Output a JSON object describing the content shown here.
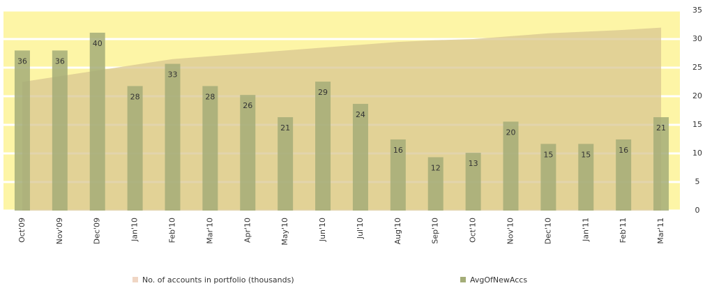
{
  "chart_data": {
    "type": "bar",
    "categories": [
      "Oct'09",
      "Nov'09",
      "Dec'09",
      "Jan'10",
      "Feb'10",
      "Mar'10",
      "Apr'10",
      "May'10",
      "Jun'10",
      "Jul'10",
      "Aug'10",
      "Sep'10",
      "Oct'10",
      "Nov'10",
      "Dec'10",
      "Jan'11",
      "Feb'11",
      "Mar'11"
    ],
    "series": [
      {
        "name": "No. of accounts in portfolio (thousands)",
        "type": "area",
        "color": "#d8c690",
        "values": [
          22.5,
          23.5,
          24.5,
          25.5,
          26.5,
          27,
          27.5,
          28,
          28.5,
          29,
          29.5,
          29.8,
          30,
          30.5,
          31,
          31.3,
          31.6,
          32
        ]
      },
      {
        "name": "AvgOfNewAccs",
        "type": "bar",
        "color": "#a4ad78",
        "axis": "y2",
        "values": [
          36,
          36,
          40,
          28,
          33,
          28,
          26,
          21,
          29,
          24,
          16,
          12,
          13,
          20,
          15,
          15,
          16,
          21
        ]
      }
    ],
    "ylim": [
      0,
      35
    ],
    "yticks": [
      0,
      5,
      10,
      15,
      20,
      25,
      30,
      35
    ],
    "y2lim": [
      0,
      45
    ],
    "grid": true,
    "legend": "bottom"
  }
}
